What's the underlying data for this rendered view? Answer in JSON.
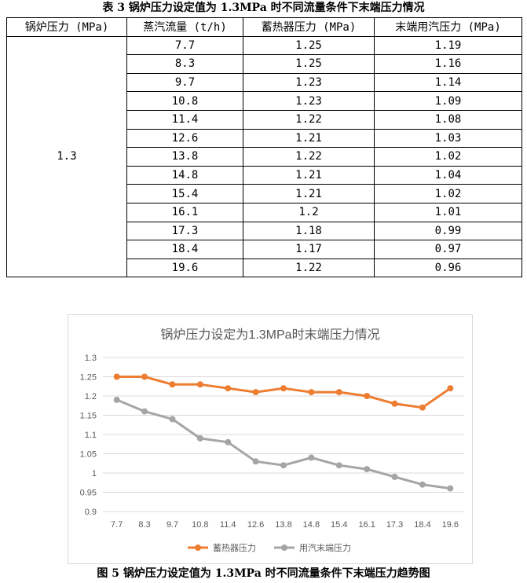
{
  "table_caption": "表 3 锅炉压力设定值为 1.3MPa 时不同流量条件下末端压力情况",
  "table": {
    "headers": [
      "锅炉压力 (MPa)",
      "蒸汽流量 (t/h)",
      "蓄热器压力 (MPa)",
      "末端用汽压力 (MPa)"
    ],
    "boiler_pressure": "1.3",
    "rows": [
      [
        "7.7",
        "1.25",
        "1.19"
      ],
      [
        "8.3",
        "1.25",
        "1.16"
      ],
      [
        "9.7",
        "1.23",
        "1.14"
      ],
      [
        "10.8",
        "1.23",
        "1.09"
      ],
      [
        "11.4",
        "1.22",
        "1.08"
      ],
      [
        "12.6",
        "1.21",
        "1.03"
      ],
      [
        "13.8",
        "1.22",
        "1.02"
      ],
      [
        "14.8",
        "1.21",
        "1.04"
      ],
      [
        "15.4",
        "1.21",
        "1.02"
      ],
      [
        "16.1",
        "1.2",
        "1.01"
      ],
      [
        "17.3",
        "1.18",
        "0.99"
      ],
      [
        "18.4",
        "1.17",
        "0.97"
      ],
      [
        "19.6",
        "1.22",
        "0.96"
      ]
    ]
  },
  "chart_data": {
    "type": "line",
    "title": "锅炉压力设定为1.3MPa时末端压力情况",
    "categories": [
      "7.7",
      "8.3",
      "9.7",
      "10.8",
      "11.4",
      "12.6",
      "13.8",
      "14.8",
      "15.4",
      "16.1",
      "17.3",
      "18.4",
      "19.6"
    ],
    "series": [
      {
        "name": "蓄热器压力",
        "color": "#ED7D31",
        "values": [
          1.25,
          1.25,
          1.23,
          1.23,
          1.22,
          1.21,
          1.22,
          1.21,
          1.21,
          1.2,
          1.18,
          1.17,
          1.22
        ]
      },
      {
        "name": "用汽末端压力",
        "color": "#A5A5A5",
        "values": [
          1.19,
          1.16,
          1.14,
          1.09,
          1.08,
          1.03,
          1.02,
          1.04,
          1.02,
          1.01,
          0.99,
          0.97,
          0.96
        ]
      }
    ],
    "ylim": [
      0.9,
      1.3
    ],
    "yticks": [
      "0.9",
      "0.95",
      "1",
      "1.05",
      "1.1",
      "1.15",
      "1.2",
      "1.25",
      "1.3"
    ],
    "grid": true,
    "legend": "bottom"
  },
  "figure_caption": "图 5 锅炉压力设定值为 1.3MPa 时不同流量条件下末端压力趋势图"
}
